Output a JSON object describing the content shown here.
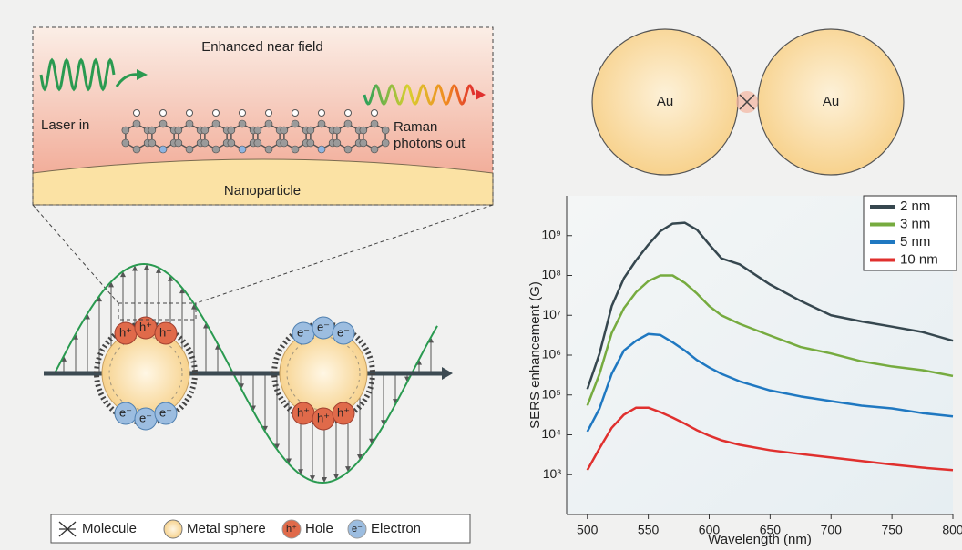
{
  "chart_data": {
    "type": "line",
    "xlabel": "Wavelength (nm)",
    "ylabel": "SERS enhancement (G)",
    "x": [
      500,
      510,
      520,
      530,
      540,
      550,
      560,
      570,
      580,
      590,
      600,
      610,
      625,
      650,
      675,
      700,
      725,
      750,
      775,
      800
    ],
    "series": [
      {
        "name": "2 nm",
        "color": "#36474f",
        "values": [
          140000,
          1100000,
          17000000,
          85000000,
          240000000,
          590000000,
          1300000000,
          2000000000,
          2100000000,
          1400000000,
          600000000,
          270000000,
          190000000,
          59000000,
          23000000,
          10000000,
          7000000,
          5200000,
          3800000,
          2300000
        ]
      },
      {
        "name": "3 nm",
        "color": "#76ab3f",
        "values": [
          54000,
          340000,
          3600000,
          15000000,
          38000000,
          72000000,
          100000000,
          100000000,
          65000000,
          35000000,
          17000000,
          10000000,
          6100000,
          3100000,
          1600000,
          1100000,
          700000,
          520000,
          420000,
          300000
        ]
      },
      {
        "name": "5 nm",
        "color": "#1f78c1",
        "values": [
          12000,
          46000,
          340000,
          1300000,
          2300000,
          3400000,
          3200000,
          2100000,
          1300000,
          750000,
          490000,
          340000,
          220000,
          130000,
          92000,
          70000,
          54000,
          46000,
          35000,
          29000
        ]
      },
      {
        "name": "10 nm",
        "color": "#e0302e",
        "values": [
          1300,
          4600,
          15000,
          32000,
          48000,
          48000,
          37000,
          27000,
          19000,
          13000,
          9500,
          7300,
          5600,
          4100,
          3300,
          2700,
          2200,
          1800,
          1500,
          1300
        ]
      }
    ],
    "xlim": [
      483,
      800
    ],
    "ylim": [
      100,
      10000000000
    ],
    "yscale": "log",
    "xticks": [
      500,
      550,
      600,
      650,
      700,
      750,
      800
    ],
    "yticks": [
      {
        "value": 1000,
        "label": "10³"
      },
      {
        "value": 10000,
        "label": "10⁴"
      },
      {
        "value": 100000,
        "label": "10⁵"
      },
      {
        "value": 1000000,
        "label": "10⁶"
      },
      {
        "value": 10000000,
        "label": "10⁷"
      },
      {
        "value": 100000000,
        "label": "10⁸"
      },
      {
        "value": 1000000000,
        "label": "10⁹"
      }
    ],
    "legend": "upper right"
  },
  "diagram": {
    "inset": {
      "title": "Enhanced near field",
      "laser": "Laser in",
      "raman": [
        "Raman",
        "photons out"
      ],
      "particle": "Nanoparticle"
    },
    "dimer": {
      "left": "Au",
      "right": "Au"
    },
    "charges": {
      "hole": "h⁺",
      "electron": "e⁻"
    },
    "legend": [
      "Molecule",
      "Metal sphere",
      "Hole",
      "Electron"
    ]
  }
}
